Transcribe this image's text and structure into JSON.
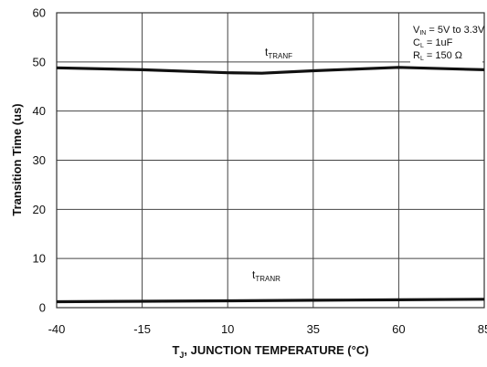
{
  "chart_data": {
    "type": "line",
    "title": "",
    "xlabel": {
      "symbol": "T",
      "subscript": "J",
      "rest": ", JUNCTION TEMPERATURE (°C)"
    },
    "ylabel": "Transition Time (us)",
    "x_ticks": [
      "-40",
      "-15",
      "10",
      "35",
      "60",
      "85"
    ],
    "y_ticks": [
      "0",
      "10",
      "20",
      "30",
      "40",
      "50",
      "60"
    ],
    "xlim": [
      -40,
      85
    ],
    "ylim": [
      0,
      60
    ],
    "grid": true,
    "series": [
      {
        "label": {
          "main": "t",
          "sub": "TRANF"
        },
        "x": [
          -40,
          -15,
          10,
          20,
          35,
          60,
          85
        ],
        "y": [
          48.8,
          48.4,
          47.8,
          47.7,
          48.2,
          48.9,
          48.4
        ]
      },
      {
        "label": {
          "main": "t",
          "sub": "TRANR"
        },
        "x": [
          -40,
          -15,
          10,
          35,
          60,
          85
        ],
        "y": [
          1.2,
          1.3,
          1.4,
          1.5,
          1.6,
          1.7
        ]
      }
    ],
    "conditions": [
      {
        "main": "V",
        "sub": "IN",
        "rest": " = 5V to 3.3V"
      },
      {
        "main": "C",
        "sub": "L",
        "rest": " = 1uF"
      },
      {
        "main": "R",
        "sub": "L",
        "rest": " = 150 Ω"
      }
    ]
  },
  "colors": {
    "line": "#111111",
    "grid": "#444444",
    "frame": "#333333",
    "background": "#ffffff"
  }
}
